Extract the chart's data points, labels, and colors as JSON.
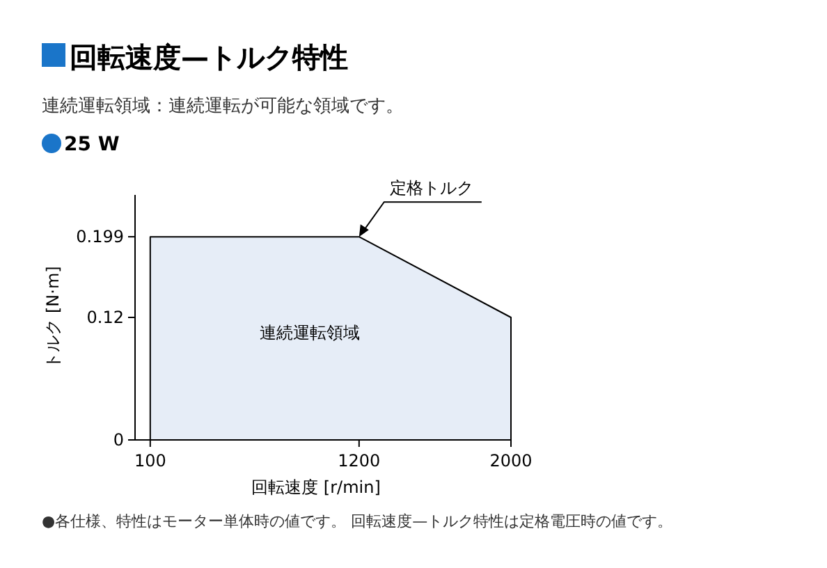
{
  "chart_data": {
    "type": "area",
    "title": "回転速度—トルク特性",
    "subtitle": "連続運転領域：連続運転が可能な領域です。",
    "xlabel": "回転速度 [r/min]",
    "ylabel": "トルク [N·m]",
    "x": [
      100,
      1200,
      2000
    ],
    "series": [
      {
        "color": "#e6edf7",
        "values": [
          0.199,
          0.199,
          0.12
        ]
      }
    ],
    "xlim": [
      20,
      2000
    ],
    "xticks": [
      100,
      1200,
      2000
    ],
    "ylim": [
      0,
      0.24
    ],
    "yticks": [
      0,
      0.12,
      0.199
    ],
    "grid": false,
    "annotations": [
      "25 W",
      {
        "text": "定格トルク",
        "x": 1200,
        "y": 0.199
      },
      "連続運転領域",
      "●各仕様、特性はモーター単体時の値です。 回転速度—トルク特性は定格電圧時の値です。"
    ]
  }
}
